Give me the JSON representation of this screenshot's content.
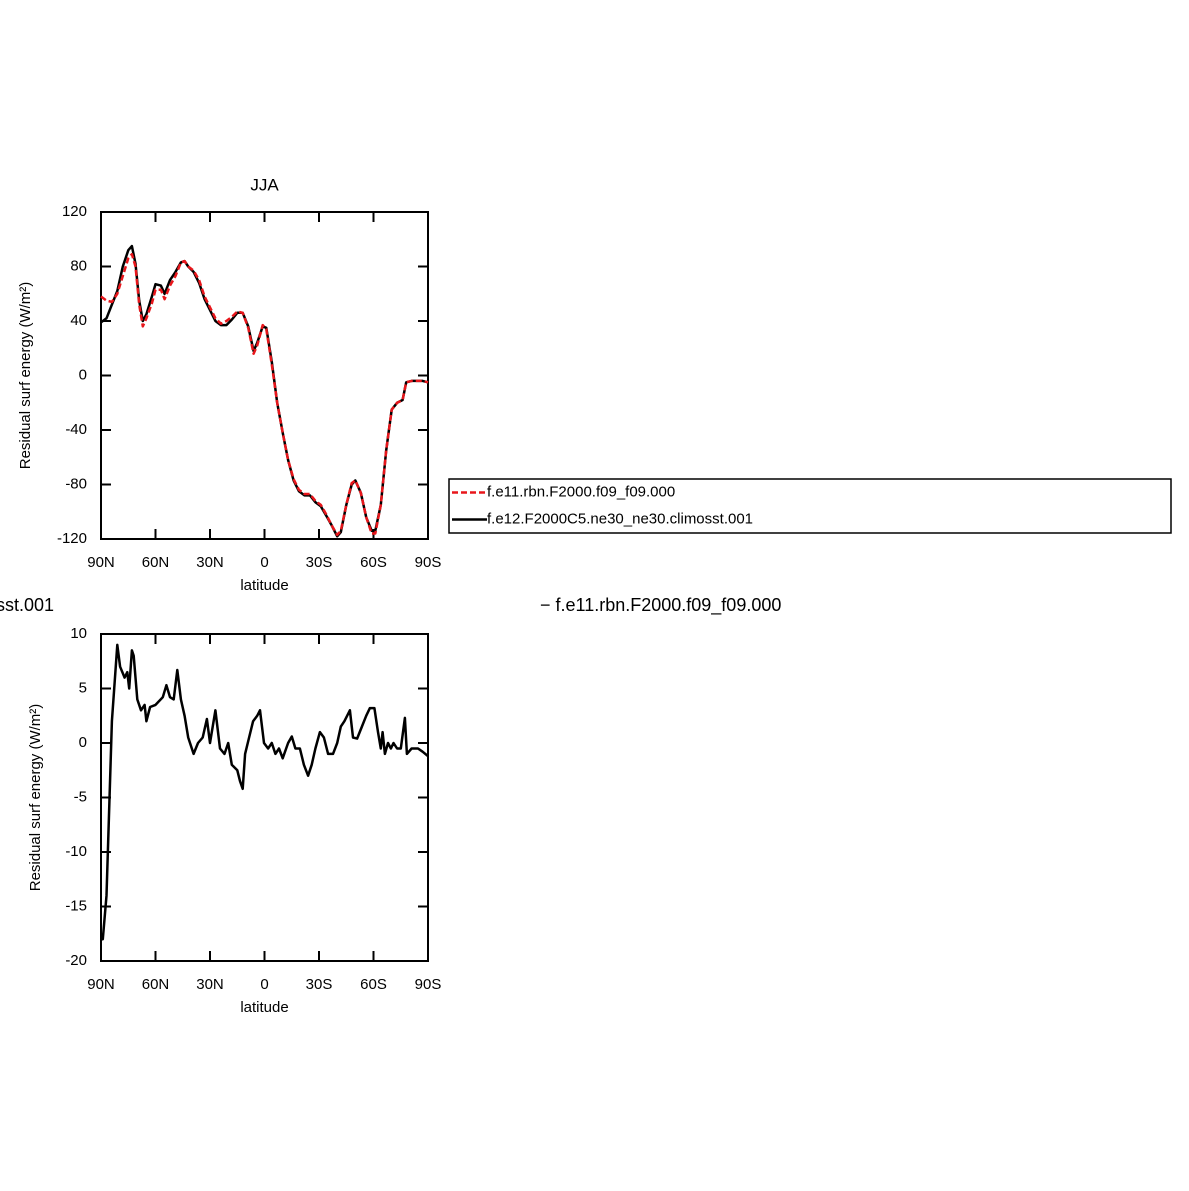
{
  "chart_data": [
    {
      "type": "line",
      "title": "JJA",
      "xlabel": "latitude",
      "ylabel": "Residual surf energy (W/m²)",
      "xlim": [
        90,
        -90
      ],
      "xticks": [
        {
          "value": 90,
          "label": "90N"
        },
        {
          "value": 60,
          "label": "60N"
        },
        {
          "value": 30,
          "label": "30N"
        },
        0,
        {
          "value": -30,
          "label": "30S"
        },
        {
          "value": -60,
          "label": "60S"
        },
        {
          "value": -90,
          "label": "90S"
        }
      ],
      "ylim": [
        -120,
        120
      ],
      "yticks": [
        120,
        80,
        40,
        0,
        -40,
        -80,
        -120
      ],
      "legend": "right",
      "x": [
        90,
        87,
        84,
        81,
        78,
        75,
        73,
        71,
        69,
        67,
        65,
        62,
        60,
        57,
        55,
        52,
        49,
        46,
        44,
        42,
        39,
        36,
        33,
        30,
        27,
        24,
        21,
        18,
        15,
        12,
        9,
        6,
        4,
        1,
        -1,
        -4,
        -7,
        -10,
        -13,
        -16,
        -19,
        -22,
        -25,
        -28,
        -31,
        -34,
        -37,
        -40,
        -42,
        -45,
        -48,
        -50,
        -53,
        -56,
        -59,
        -61,
        -64,
        -67,
        -70,
        -73,
        -76,
        -78,
        -81,
        -84,
        -87,
        -90
      ],
      "series": [
        {
          "name": "f.e11.rbn.F2000.f09_f09.000",
          "color": "#e8161b",
          "linestyle": "dashed",
          "values": [
            58,
            55,
            54,
            60,
            73,
            86,
            89,
            80,
            52,
            36,
            42,
            53,
            63,
            63,
            56,
            66,
            73,
            83,
            84,
            80,
            77,
            70,
            58,
            50,
            42,
            38,
            40,
            43,
            47,
            46,
            35,
            16,
            22,
            37,
            34,
            8,
            -20,
            -42,
            -62,
            -76,
            -84,
            -87,
            -87,
            -92,
            -95,
            -102,
            -110,
            -117,
            -114,
            -95,
            -79,
            -77,
            -86,
            -104,
            -116,
            -116,
            -95,
            -55,
            -25,
            -20,
            -18,
            -5,
            -4,
            -4,
            -4,
            -5
          ]
        },
        {
          "name": "f.e12.F2000C5.ne30_ne30.climosst.001",
          "color": "#000000",
          "linestyle": "solid",
          "values": [
            39,
            42,
            52,
            62,
            80,
            92,
            95,
            82,
            55,
            40,
            45,
            58,
            67,
            66,
            60,
            70,
            76,
            83,
            84,
            80,
            76,
            68,
            56,
            48,
            40,
            37,
            37,
            41,
            46,
            46,
            36,
            18,
            24,
            36,
            35,
            10,
            -20,
            -42,
            -62,
            -77,
            -85,
            -88,
            -88,
            -93,
            -96,
            -103,
            -110,
            -118,
            -115,
            -95,
            -80,
            -77,
            -86,
            -104,
            -114,
            -114,
            -95,
            -55,
            -25,
            -20,
            -18,
            -5,
            -4,
            -4,
            -4,
            -5
          ]
        }
      ]
    },
    {
      "type": "line",
      "title": [
        "sst.001",
        "− f.e11.rbn.F2000.f09_f09.000"
      ],
      "xlabel": "latitude",
      "ylabel": "Residual surf energy (W/m²)",
      "xlim": [
        90,
        -90
      ],
      "xticks": [
        {
          "value": 90,
          "label": "90N"
        },
        {
          "value": 60,
          "label": "60N"
        },
        {
          "value": 30,
          "label": "30N"
        },
        0,
        {
          "value": -30,
          "label": "30S"
        },
        {
          "value": -60,
          "label": "60S"
        },
        {
          "value": -90,
          "label": "90S"
        }
      ],
      "ylim": [
        -20,
        10
      ],
      "yticks": [
        10,
        5,
        0,
        -5,
        -10,
        -15,
        -20
      ],
      "color": "#000000",
      "x": [
        90,
        89,
        87,
        84,
        81,
        79.5,
        77,
        75.5,
        74.5,
        73,
        72,
        70,
        68,
        66,
        65,
        63,
        60,
        56,
        54,
        52,
        50,
        48,
        46,
        44,
        42,
        39,
        36.6,
        34,
        31.7,
        30,
        27,
        24.5,
        22,
        20,
        18,
        15,
        13.5,
        12,
        10.7,
        8.5,
        6.3,
        4,
        2.5,
        0.3,
        -2,
        -4,
        -6,
        -8,
        -10,
        -13,
        -15,
        -17,
        -19.5,
        -21.7,
        -24,
        -26,
        -28,
        -30.5,
        -32.7,
        -35,
        -37.7,
        -40,
        -42,
        -44,
        -47,
        -48.7,
        -51,
        -53.6,
        -56,
        -58,
        -60.5,
        -62.5,
        -64,
        -65,
        -66.3,
        -68,
        -69.6,
        -71,
        -73,
        -75,
        -77.3,
        -78.4,
        -81,
        -84.5,
        -87,
        -90
      ],
      "values": [
        -18,
        -18,
        -14,
        2,
        9,
        7,
        6,
        6.5,
        5,
        8.5,
        8,
        4,
        3,
        3.5,
        2,
        3.3,
        3.5,
        4.2,
        5.3,
        4.2,
        4,
        6.7,
        4,
        2.5,
        0.5,
        -1,
        0,
        0.5,
        2.2,
        0,
        3,
        -0.5,
        -1,
        0,
        -2,
        -2.5,
        -3.5,
        -4.2,
        -1,
        0.5,
        2,
        2.5,
        3,
        0,
        -0.5,
        0,
        -1,
        -0.5,
        -1.4,
        0,
        0.6,
        -0.5,
        -0.5,
        -2,
        -3,
        -2,
        -0.5,
        1,
        0.5,
        -1,
        -1,
        0,
        1.5,
        2,
        3,
        0.5,
        0.4,
        1.5,
        2.5,
        3.2,
        3.2,
        1,
        -0.5,
        1,
        -1,
        0,
        -0.5,
        0,
        -0.5,
        -0.5,
        2.3,
        -1,
        -0.5,
        -0.5,
        -0.8,
        -1.2
      ]
    }
  ]
}
